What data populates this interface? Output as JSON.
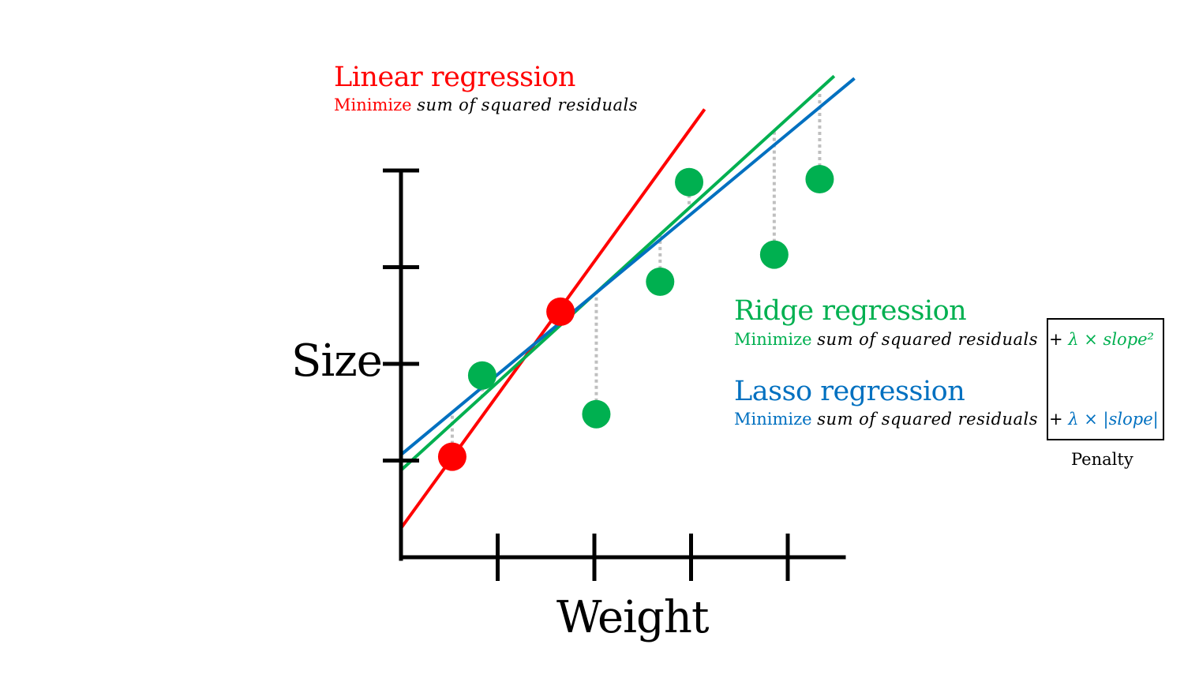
{
  "colors": {
    "linear": "#ff0000",
    "ridge": "#00b050",
    "lasso": "#0070c0",
    "axis": "#000000",
    "residual": "#bfbfbf"
  },
  "axes": {
    "x_label": "Weight",
    "y_label": "Size"
  },
  "linear": {
    "title": "Linear regression",
    "minimize": "Minimize",
    "objective": "sum of squared residuals"
  },
  "ridge": {
    "title": "Ridge regression",
    "minimize": "Minimize",
    "objective": "sum of squared residuals",
    "plus": "+",
    "penalty_term": "λ × slope²"
  },
  "lasso": {
    "title": "Lasso regression",
    "minimize": "Minimize",
    "objective": "sum of squared residuals",
    "plus": "+",
    "penalty_term": "λ × |slope|"
  },
  "penalty_label": "Penalty",
  "chart_data": {
    "type": "scatter",
    "x_ticks": 4,
    "y_ticks": 4,
    "training_points": [
      {
        "x": 0.53,
        "y": 1.04
      },
      {
        "x": 1.65,
        "y": 2.54
      }
    ],
    "testing_points": [
      {
        "x": 0.84,
        "y": 1.88
      },
      {
        "x": 2.02,
        "y": 1.48
      },
      {
        "x": 2.68,
        "y": 2.85
      },
      {
        "x": 2.98,
        "y": 3.88
      },
      {
        "x": 3.86,
        "y": 3.13
      },
      {
        "x": 4.33,
        "y": 3.91
      }
    ],
    "lines": [
      {
        "name": "linear",
        "intercept": 0.3,
        "slope": 1.38,
        "x_end": 3.14
      },
      {
        "name": "ridge",
        "intercept": 0.9,
        "slope": 0.91,
        "x_end": 4.48
      },
      {
        "name": "lasso",
        "intercept": 1.06,
        "slope": 0.83,
        "x_end": 4.69
      }
    ]
  }
}
